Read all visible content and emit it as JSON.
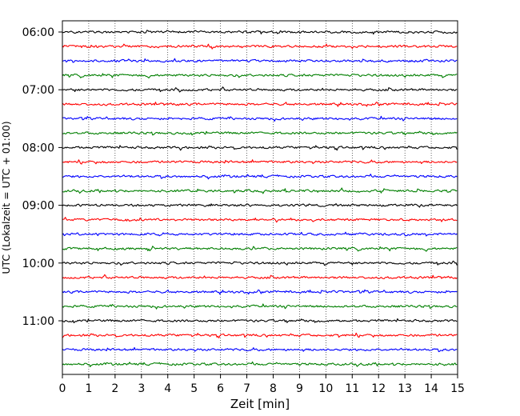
{
  "chart_data": {
    "type": "line",
    "xlabel": "Zeit  [min]",
    "ylabel": "UTC (Lokalzeit = UTC + 01:00)",
    "xlim": [
      0,
      15
    ],
    "x_ticks": [
      "0",
      "1",
      "2",
      "3",
      "4",
      "5",
      "6",
      "7",
      "8",
      "9",
      "10",
      "11",
      "12",
      "13",
      "14",
      "15"
    ],
    "y_ticks": [
      "06:00",
      "07:00",
      "08:00",
      "09:00",
      "10:00",
      "11:00"
    ],
    "grid": "vertical-dotted",
    "trace_interval_minutes": 15,
    "trace_colors": [
      "#000000",
      "#ff0000",
      "#0000ff",
      "#007f00"
    ],
    "trace_start_times": [
      "06:00",
      "06:15",
      "06:30",
      "06:45",
      "07:00",
      "07:15",
      "07:30",
      "07:45",
      "08:00",
      "08:15",
      "08:30",
      "08:45",
      "09:00",
      "09:15",
      "09:30",
      "09:45",
      "10:00",
      "10:15",
      "10:30",
      "10:45",
      "11:00",
      "11:15",
      "11:30",
      "11:45"
    ]
  }
}
